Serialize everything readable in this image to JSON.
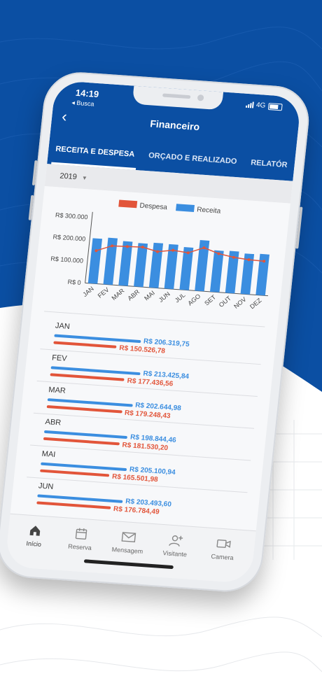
{
  "status": {
    "time": "14:19",
    "back_app": "◂ Busca",
    "network": "4G"
  },
  "header": {
    "title": "Financeiro",
    "back_icon": "chevron-left-icon"
  },
  "tabs": [
    {
      "label": "RECEITA E DESPESA",
      "active": true
    },
    {
      "label": "ORÇADO E REALIZADO",
      "active": false
    },
    {
      "label": "RELATÓR",
      "active": false
    }
  ],
  "filter": {
    "year": "2019"
  },
  "colors": {
    "brand": "#0b4fa3",
    "receita": "#3b8ee0",
    "despesa": "#e2553a"
  },
  "chart_data": {
    "type": "bar",
    "legend": [
      "Despesa",
      "Receita"
    ],
    "categories": [
      "JAN",
      "FEV",
      "MAR",
      "ABR",
      "MAI",
      "JUN",
      "JUL",
      "AGO",
      "SET",
      "OUT",
      "NOV",
      "DEZ"
    ],
    "y_ticks": [
      "R$ 300.000",
      "R$ 200.000",
      "R$ 100.000",
      "R$ 0"
    ],
    "ylim": [
      0,
      300000
    ],
    "series": [
      {
        "name": "Receita",
        "kind": "bar",
        "values": [
          206319.75,
          213425.84,
          202644.98,
          198844.46,
          205100.94,
          203493.6,
          195000,
          232000,
          190000,
          192000,
          185000,
          188000
        ]
      },
      {
        "name": "Despesa",
        "kind": "line",
        "values": [
          150526.78,
          177436.56,
          179248.43,
          181530.2,
          165501.98,
          176784.49,
          170000,
          198000,
          176000,
          164000,
          158000,
          156000
        ]
      }
    ]
  },
  "months": [
    {
      "label": "JAN",
      "receita": "R$ 206.319,75",
      "despesa": "R$ 150.526,78"
    },
    {
      "label": "FEV",
      "receita": "R$ 213.425,84",
      "despesa": "R$ 177.436,56"
    },
    {
      "label": "MAR",
      "receita": "R$ 202.644,98",
      "despesa": "R$ 179.248,43"
    },
    {
      "label": "ABR",
      "receita": "R$ 198.844,46",
      "despesa": "R$ 181.530,20"
    },
    {
      "label": "MAI",
      "receita": "R$ 205.100,94",
      "despesa": "R$ 165.501,98"
    },
    {
      "label": "JUN",
      "receita": "R$ 203.493,60",
      "despesa": "R$ 176.784,49"
    }
  ],
  "nav": [
    {
      "label": "Início",
      "icon": "home-icon",
      "active": true
    },
    {
      "label": "Reserva",
      "icon": "calendar-icon",
      "active": false
    },
    {
      "label": "Mensagem",
      "icon": "mail-icon",
      "active": false
    },
    {
      "label": "Visitante",
      "icon": "add-user-icon",
      "active": false
    },
    {
      "label": "Camera",
      "icon": "video-icon",
      "active": false
    }
  ]
}
